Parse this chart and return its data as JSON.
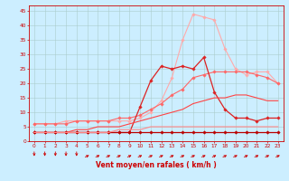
{
  "x": [
    0,
    1,
    2,
    3,
    4,
    5,
    6,
    7,
    8,
    9,
    10,
    11,
    12,
    13,
    14,
    15,
    16,
    17,
    18,
    19,
    20,
    21,
    22,
    23
  ],
  "series": [
    {
      "color": "#ffaaaa",
      "values": [
        6,
        6,
        6,
        7,
        7,
        7,
        7,
        7,
        7,
        7,
        8,
        10,
        14,
        22,
        35,
        44,
        43,
        42,
        32,
        25,
        23,
        24,
        24,
        20
      ],
      "marker": "D",
      "markersize": 1.8,
      "linewidth": 0.8
    },
    {
      "color": "#ff6666",
      "values": [
        6,
        6,
        6,
        6,
        7,
        7,
        7,
        7,
        8,
        8,
        9,
        11,
        13,
        16,
        18,
        22,
        23,
        24,
        24,
        24,
        24,
        23,
        22,
        20
      ],
      "marker": "D",
      "markersize": 1.8,
      "linewidth": 0.8
    },
    {
      "color": "#dd2222",
      "values": [
        3,
        3,
        3,
        3,
        3,
        3,
        3,
        3,
        3,
        3,
        12,
        21,
        26,
        25,
        26,
        25,
        29,
        17,
        11,
        8,
        8,
        7,
        8,
        8
      ],
      "marker": "D",
      "markersize": 1.8,
      "linewidth": 0.9
    },
    {
      "color": "#bb0000",
      "values": [
        3,
        3,
        3,
        3,
        3,
        3,
        3,
        3,
        3,
        3,
        3,
        3,
        3,
        3,
        3,
        3,
        3,
        3,
        3,
        3,
        3,
        3,
        3,
        3
      ],
      "marker": "D",
      "markersize": 1.8,
      "linewidth": 0.9
    },
    {
      "color": "#ff4444",
      "values": [
        3,
        3,
        3,
        3,
        4,
        4,
        5,
        5,
        5,
        6,
        7,
        8,
        9,
        10,
        11,
        13,
        14,
        15,
        15,
        16,
        16,
        15,
        14,
        14
      ],
      "marker": null,
      "markersize": 0,
      "linewidth": 0.8
    },
    {
      "color": "#ff8888",
      "values": [
        3,
        3,
        3,
        3,
        3,
        3,
        3,
        3,
        4,
        4,
        4,
        5,
        5,
        5,
        5,
        5,
        5,
        5,
        5,
        5,
        5,
        5,
        5,
        5
      ],
      "marker": null,
      "markersize": 0,
      "linewidth": 0.8
    }
  ],
  "xlabel": "Vent moyen/en rafales ( km/h )",
  "ylim": [
    0,
    47
  ],
  "xlim": [
    -0.5,
    23.5
  ],
  "yticks": [
    0,
    5,
    10,
    15,
    20,
    25,
    30,
    35,
    40,
    45
  ],
  "xticks": [
    0,
    1,
    2,
    3,
    4,
    5,
    6,
    7,
    8,
    9,
    10,
    11,
    12,
    13,
    14,
    15,
    16,
    17,
    18,
    19,
    20,
    21,
    22,
    23
  ],
  "bg_color": "#cceeff",
  "grid_color": "#aacccc",
  "axis_color": "#cc0000",
  "text_color": "#cc0000",
  "arrow_color": "#cc0000",
  "down_indices": [
    0,
    1,
    2,
    3,
    4
  ],
  "right_indices": [
    5,
    6,
    7,
    8,
    9,
    10,
    11,
    12,
    13,
    14,
    15,
    16,
    17,
    18,
    19,
    20,
    21,
    22,
    23
  ]
}
